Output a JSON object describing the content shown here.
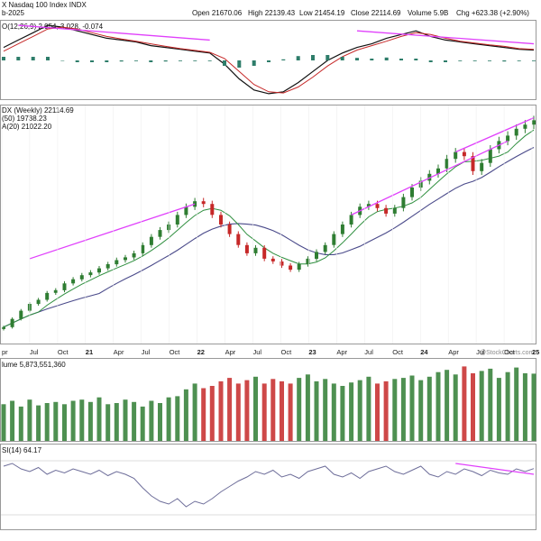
{
  "header": {
    "date_line": "b-2025",
    "open_label": "Open",
    "open": "21670.06",
    "high_label": "High",
    "high": "22139.43",
    "low_label": "Low",
    "low": "21454.19",
    "close_label": "Close",
    "close": "22114.69",
    "vol_label": "Volume",
    "vol": "5.9B",
    "chg_label": "Chg",
    "chg": "+623.38 (+2.90%)",
    "chg_arrow": "▲",
    "watermark": "@StockCharts.com",
    "title": "X Nasdaq 100 Index INDX"
  },
  "colors": {
    "up": "#2f7d32",
    "down": "#c62828",
    "trend": "#e040fb",
    "sma50": "#4a4a8a",
    "sma20": "#2f8f3f",
    "macd": "#111111",
    "signal": "#c62828",
    "hist": "#2e7d6a",
    "rsi": "#6e6e9a"
  },
  "chart_data": [
    {
      "type": "line",
      "panel": "MACD",
      "label": "O(12,26,9) 2.954, 3.028, -0.074",
      "series": [
        {
          "name": "MACD",
          "values": [
            0.35,
            0.55,
            0.75,
            0.95,
            0.9,
            0.8,
            0.7,
            0.6,
            0.55,
            0.5,
            0.4,
            0.35,
            0.3,
            0.25,
            0.2,
            -0.1,
            -0.5,
            -0.8,
            -0.9,
            -0.85,
            -0.6,
            -0.3,
            0.0,
            0.2,
            0.35,
            0.45,
            0.6,
            0.7,
            0.8,
            0.65,
            0.55,
            0.5,
            0.45,
            0.4,
            0.35,
            0.3,
            0.28
          ]
        },
        {
          "name": "Signal",
          "values": [
            0.25,
            0.45,
            0.65,
            0.85,
            0.9,
            0.85,
            0.75,
            0.65,
            0.58,
            0.52,
            0.45,
            0.38,
            0.32,
            0.27,
            0.22,
            0.05,
            -0.3,
            -0.65,
            -0.85,
            -0.88,
            -0.72,
            -0.45,
            -0.15,
            0.1,
            0.28,
            0.4,
            0.52,
            0.65,
            0.75,
            0.7,
            0.6,
            0.52,
            0.47,
            0.42,
            0.38,
            0.32,
            0.3
          ]
        }
      ],
      "trendlines": [
        {
          "from": [
            1,
            0.95
          ],
          "to": [
            14,
            0.55
          ]
        },
        {
          "from": [
            24,
            0.8
          ],
          "to": [
            36,
            0.45
          ]
        }
      ]
    },
    {
      "type": "candlestick",
      "panel": "Price",
      "label": "DX (Weekly) 22114.69",
      "sma_labels": [
        "(50) 19738.23",
        "A(20) 21022.20"
      ],
      "x_labels": [
        "pr",
        "Jul",
        "Oct",
        "21",
        "Apr",
        "Jul",
        "Oct",
        "22",
        "Apr",
        "Jul",
        "Oct",
        "23",
        "Apr",
        "Jul",
        "Oct",
        "24",
        "Apr",
        "Jul",
        "Oct",
        "25"
      ],
      "close": [
        7000,
        7600,
        8200,
        8700,
        9000,
        9500,
        9700,
        10200,
        10500,
        10800,
        11000,
        11300,
        11600,
        11900,
        12100,
        12400,
        13000,
        13600,
        14100,
        14500,
        15200,
        15800,
        16200,
        16000,
        15200,
        14500,
        13800,
        13000,
        12400,
        12800,
        12000,
        11800,
        11500,
        11200,
        11600,
        12000,
        12500,
        13000,
        13800,
        14500,
        15200,
        15800,
        16000,
        15700,
        15300,
        15700,
        16500,
        17200,
        17700,
        18200,
        18600,
        19300,
        19800,
        19500,
        18400,
        19000,
        20000,
        20600,
        21000,
        21500,
        21800,
        22114.69
      ],
      "trendlines": [
        {
          "from": [
            3,
            12000
          ],
          "to": [
            22,
            16000
          ]
        },
        {
          "from": [
            40,
            15200
          ],
          "to": [
            58,
            20600
          ]
        },
        {
          "from": [
            52,
            19800
          ],
          "to": [
            61,
            22300
          ]
        }
      ],
      "ylim": [
        6000,
        23000
      ]
    },
    {
      "type": "bar",
      "panel": "Volume",
      "label": "lume 5,873,551,360",
      "values": [
        3.2,
        3.5,
        3.0,
        3.6,
        3.1,
        3.3,
        3.4,
        3.2,
        3.5,
        3.6,
        3.4,
        3.8,
        3.2,
        3.3,
        3.6,
        3.4,
        3.0,
        3.5,
        3.3,
        3.8,
        3.9,
        4.5,
        5.0,
        4.6,
        4.8,
        5.2,
        5.5,
        5.0,
        5.3,
        5.6,
        5.0,
        5.4,
        5.2,
        5.0,
        5.5,
        5.8,
        5.2,
        5.4,
        5.0,
        4.8,
        5.1,
        5.3,
        5.6,
        5.0,
        5.2,
        5.4,
        5.5,
        5.7,
        5.3,
        5.6,
        6.0,
        6.2,
        5.8,
        6.5,
        5.9,
        6.1,
        6.3,
        5.5,
        6.0,
        6.4,
        5.9,
        5.87
      ],
      "ylim": [
        0,
        7
      ]
    },
    {
      "type": "line",
      "panel": "RSI",
      "label": "SI(14) 64.17",
      "series": [
        {
          "name": "RSI",
          "values": [
            66,
            68,
            64,
            62,
            65,
            60,
            63,
            61,
            64,
            62,
            60,
            63,
            59,
            62,
            60,
            57,
            50,
            44,
            40,
            38,
            42,
            36,
            40,
            38,
            42,
            47,
            51,
            55,
            58,
            62,
            60,
            63,
            58,
            60,
            57,
            62,
            64,
            66,
            60,
            58,
            61,
            57,
            62,
            64,
            66,
            62,
            60,
            63,
            66,
            60,
            58,
            62,
            60,
            64,
            62,
            59,
            63,
            61,
            60,
            64,
            62,
            64.17
          ]
        }
      ],
      "trendlines": [
        {
          "from": [
            52,
            68
          ],
          "to": [
            61,
            60
          ]
        }
      ],
      "ylim": [
        20,
        80
      ]
    }
  ]
}
